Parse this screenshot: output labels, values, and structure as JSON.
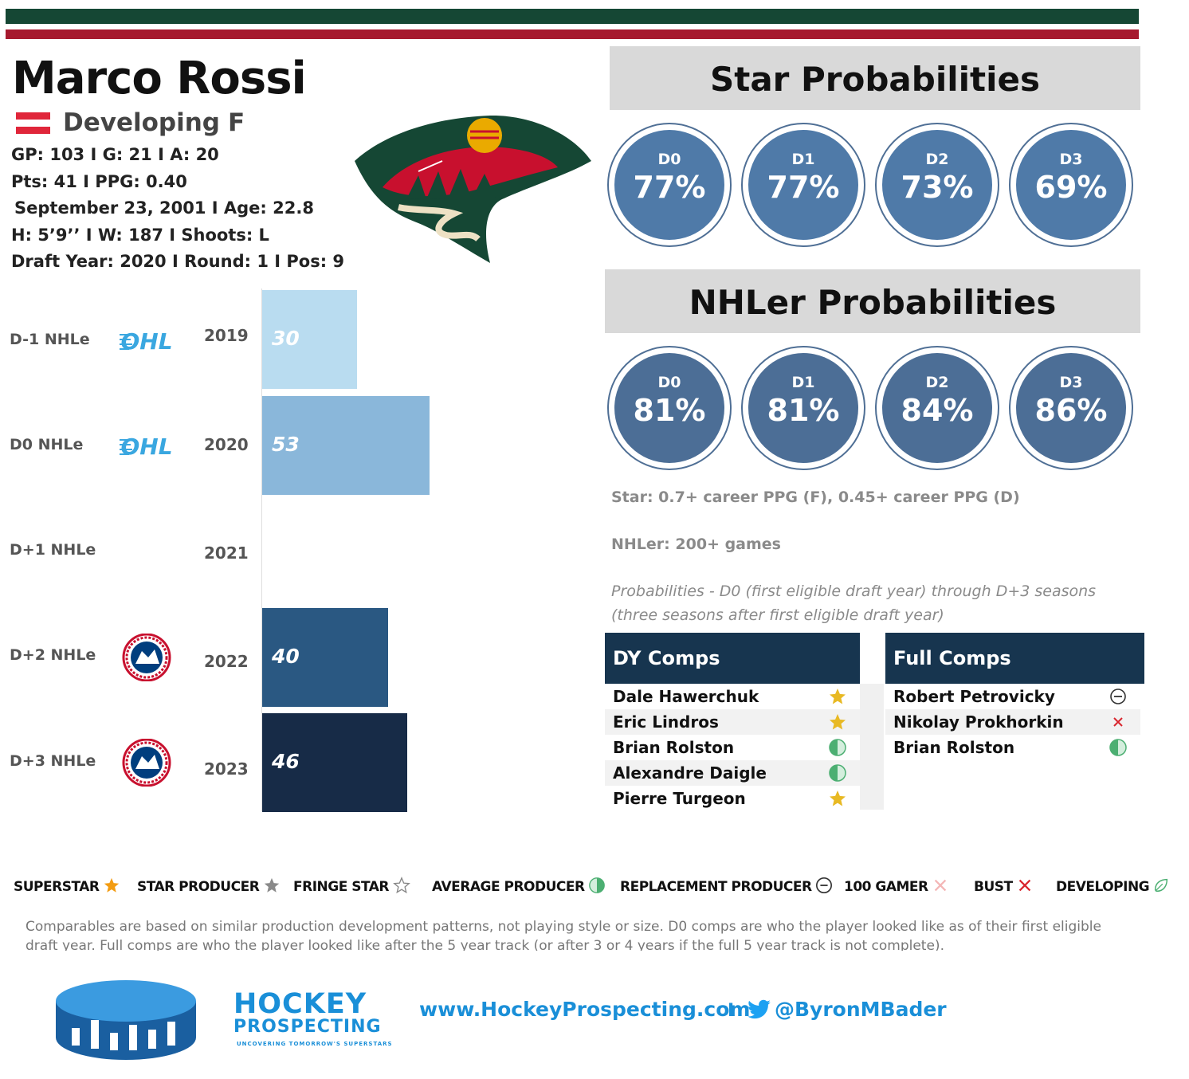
{
  "colors": {
    "wild_green": "#154734",
    "wild_red": "#a6192e",
    "circle_blue": "#4f7aa8",
    "circle_blue2": "#4c6e96",
    "comp_navy": "#17354f",
    "brand_blue": "#1a8fd8"
  },
  "player": {
    "name": "Marco Rossi",
    "status": "Developing",
    "position": "F",
    "flag": "austria-flag",
    "line1": "GP: 103 I G: 21 I A: 20",
    "line2": "Pts: 41 I PPG: 0.40",
    "line3": "September 23, 2001 I Age: 22.8",
    "line4": "H: 5’9’’ I W: 187 I Shoots: L",
    "line5": "Draft Year: 2020 I Round: 1 I Pos: 9"
  },
  "chart_data": {
    "type": "bar",
    "orientation": "horizontal",
    "categories": [
      "D-1 NHLe",
      "D0 NHLe",
      "D+1 NHLe",
      "D+2 NHLe",
      "D+3 NHLe"
    ],
    "years": [
      "2019",
      "2020",
      "2021",
      "2022",
      "2023"
    ],
    "leagues": [
      "OHL",
      "OHL",
      "",
      "AHL",
      "AHL"
    ],
    "values": [
      30,
      53,
      null,
      40,
      46
    ],
    "bar_colors": [
      "#b9dcf0",
      "#8ab7da",
      "#ffffff",
      "#2a5882",
      "#172b47"
    ],
    "xlim": [
      0,
      100
    ],
    "title": "",
    "xlabel": "",
    "ylabel": ""
  },
  "star_panel": {
    "title": "Star Probabilities",
    "items": [
      {
        "label": "D0",
        "value": "77%"
      },
      {
        "label": "D1",
        "value": "77%"
      },
      {
        "label": "D2",
        "value": "73%"
      },
      {
        "label": "D3",
        "value": "69%"
      }
    ]
  },
  "nhler_panel": {
    "title": "NHLer Probabilities",
    "items": [
      {
        "label": "D0",
        "value": "81%"
      },
      {
        "label": "D1",
        "value": "81%"
      },
      {
        "label": "D2",
        "value": "84%"
      },
      {
        "label": "D3",
        "value": "86%"
      }
    ]
  },
  "notes": {
    "star_def": "Star: 0.7+ career PPG (F), 0.45+ career PPG (D)",
    "nhler_def": "NHLer: 200+ games",
    "prob_def_1": "Probabilities - D0 (first eligible draft year) through D+3 seasons",
    "prob_def_2": "(three seasons after first eligible draft year)"
  },
  "dy_comps": {
    "title": "DY Comps",
    "rows": [
      {
        "name": "Dale Hawerchuk",
        "tier": "superstar"
      },
      {
        "name": "Eric Lindros",
        "tier": "superstar"
      },
      {
        "name": "Brian Rolston",
        "tier": "average"
      },
      {
        "name": "Alexandre Daigle",
        "tier": "average"
      },
      {
        "name": "Pierre Turgeon",
        "tier": "superstar"
      }
    ]
  },
  "full_comps": {
    "title": "Full Comps",
    "rows": [
      {
        "name": "Robert Petrovicky",
        "tier": "replacement"
      },
      {
        "name": "Nikolay Prokhorkin",
        "tier": "bust"
      },
      {
        "name": "Brian Rolston",
        "tier": "average"
      }
    ]
  },
  "legend": {
    "superstar": "SUPERSTAR",
    "star_producer": "STAR PRODUCER",
    "fringe_star": "FRINGE STAR",
    "average_producer": "AVERAGE PRODUCER",
    "replacement_producer": "REPLACEMENT PRODUCER",
    "hundred_gamer": "100 GAMER",
    "bust": "BUST",
    "developing": "DEVELOPING"
  },
  "disclaimer": "Comparables are based on similar production development patterns, not playing style or size. D0 comps are who the player looked like as of their first eligible draft year. Full comps are who the player looked like after the 5 year track (or after 3 or 4 years if the full 5 year track is not complete).",
  "footer": {
    "brand_line1": "HOCKEY",
    "brand_line2": "PROSPECTING",
    "brand_tagline": "UNCOVERING TOMORROW'S SUPERSTARS",
    "website": "www.HockeyProspecting.com",
    "separator": "I",
    "twitter": "@ByronMBader"
  }
}
